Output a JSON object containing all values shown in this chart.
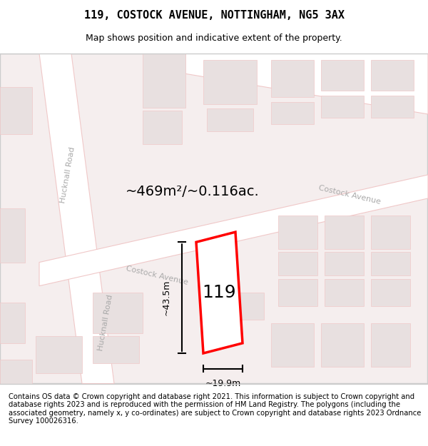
{
  "title": "119, COSTOCK AVENUE, NOTTINGHAM, NG5 3AX",
  "subtitle": "Map shows position and indicative extent of the property.",
  "footer": "Contains OS data © Crown copyright and database right 2021. This information is subject to Crown copyright and database rights 2023 and is reproduced with the permission of HM Land Registry. The polygons (including the associated geometry, namely x, y co-ordinates) are subject to Crown copyright and database rights 2023 Ordnance Survey 100026316.",
  "area_label": "~469m²/~0.116ac.",
  "width_label": "~19.9m",
  "height_label": "~43.5m",
  "property_number": "119",
  "bg_color": "#f5f0f0",
  "map_bg": "#ffffff",
  "road_color": "#f0c8c8",
  "building_color": "#e8e0e0",
  "highlight_color": "#ff0000",
  "street_label1": "Hucknall Road",
  "street_label2": "Costock Avenue",
  "title_fontsize": 11,
  "subtitle_fontsize": 9,
  "footer_fontsize": 7.2
}
